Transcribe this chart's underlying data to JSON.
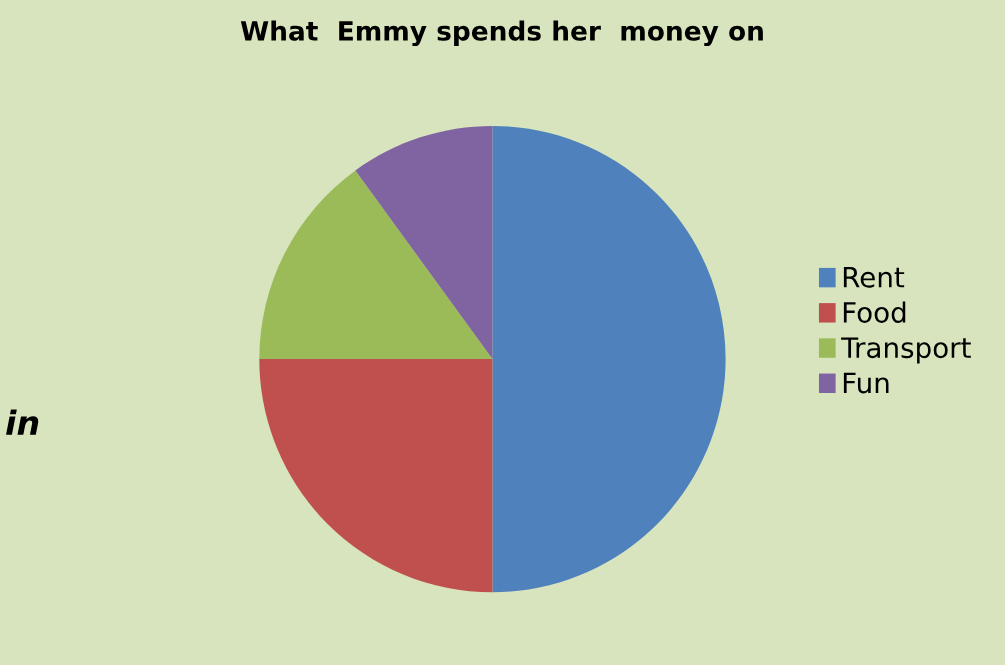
{
  "chart_data": {
    "type": "pie",
    "title": "What  Emmy spends her  money on",
    "categories": [
      "Rent",
      "Food",
      "Transport",
      "Fun"
    ],
    "values": [
      50,
      25,
      15,
      10
    ],
    "colors": [
      "#4f81bd",
      "#c0504d",
      "#9bbb59",
      "#8064a2"
    ],
    "legend": "right",
    "annotations": [
      "in"
    ]
  }
}
